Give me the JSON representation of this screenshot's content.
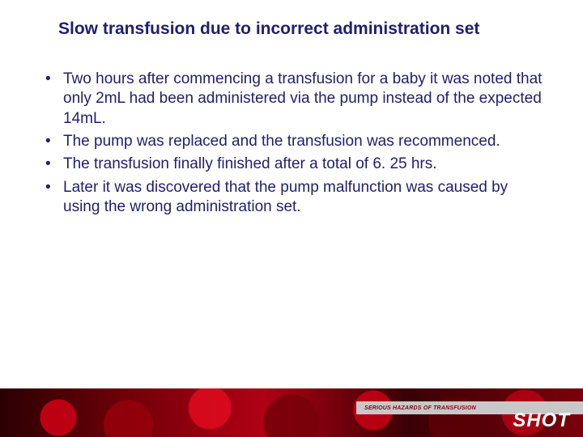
{
  "title": {
    "text": "Slow transfusion due to incorrect administration set",
    "color": "#1f1f6f",
    "fontsize": 21
  },
  "body": {
    "color": "#1f1f6f",
    "fontsize": 19,
    "line_height": 1.28,
    "bullets": [
      "Two hours after commencing a transfusion for a baby it was noted that only 2mL had been administered via the pump instead of the expected 14mL.",
      "The pump was replaced and the transfusion was recommenced.",
      "The transfusion finally finished after a total of 6. 25 hrs.",
      "Later it was discovered that the pump malfunction was caused by using the wrong administration set."
    ]
  },
  "footer": {
    "tagline": "SERIOUS HAZARDS OF TRANSFUSION",
    "tagline_color": "#8a0010",
    "tagline_fontsize": 7,
    "logo": "SHOT",
    "logo_color": "#ffffff",
    "logo_fontsize": 24,
    "stripe_bg": "#c8c8c8",
    "band_height": 60
  },
  "background_color": "#ffffff"
}
